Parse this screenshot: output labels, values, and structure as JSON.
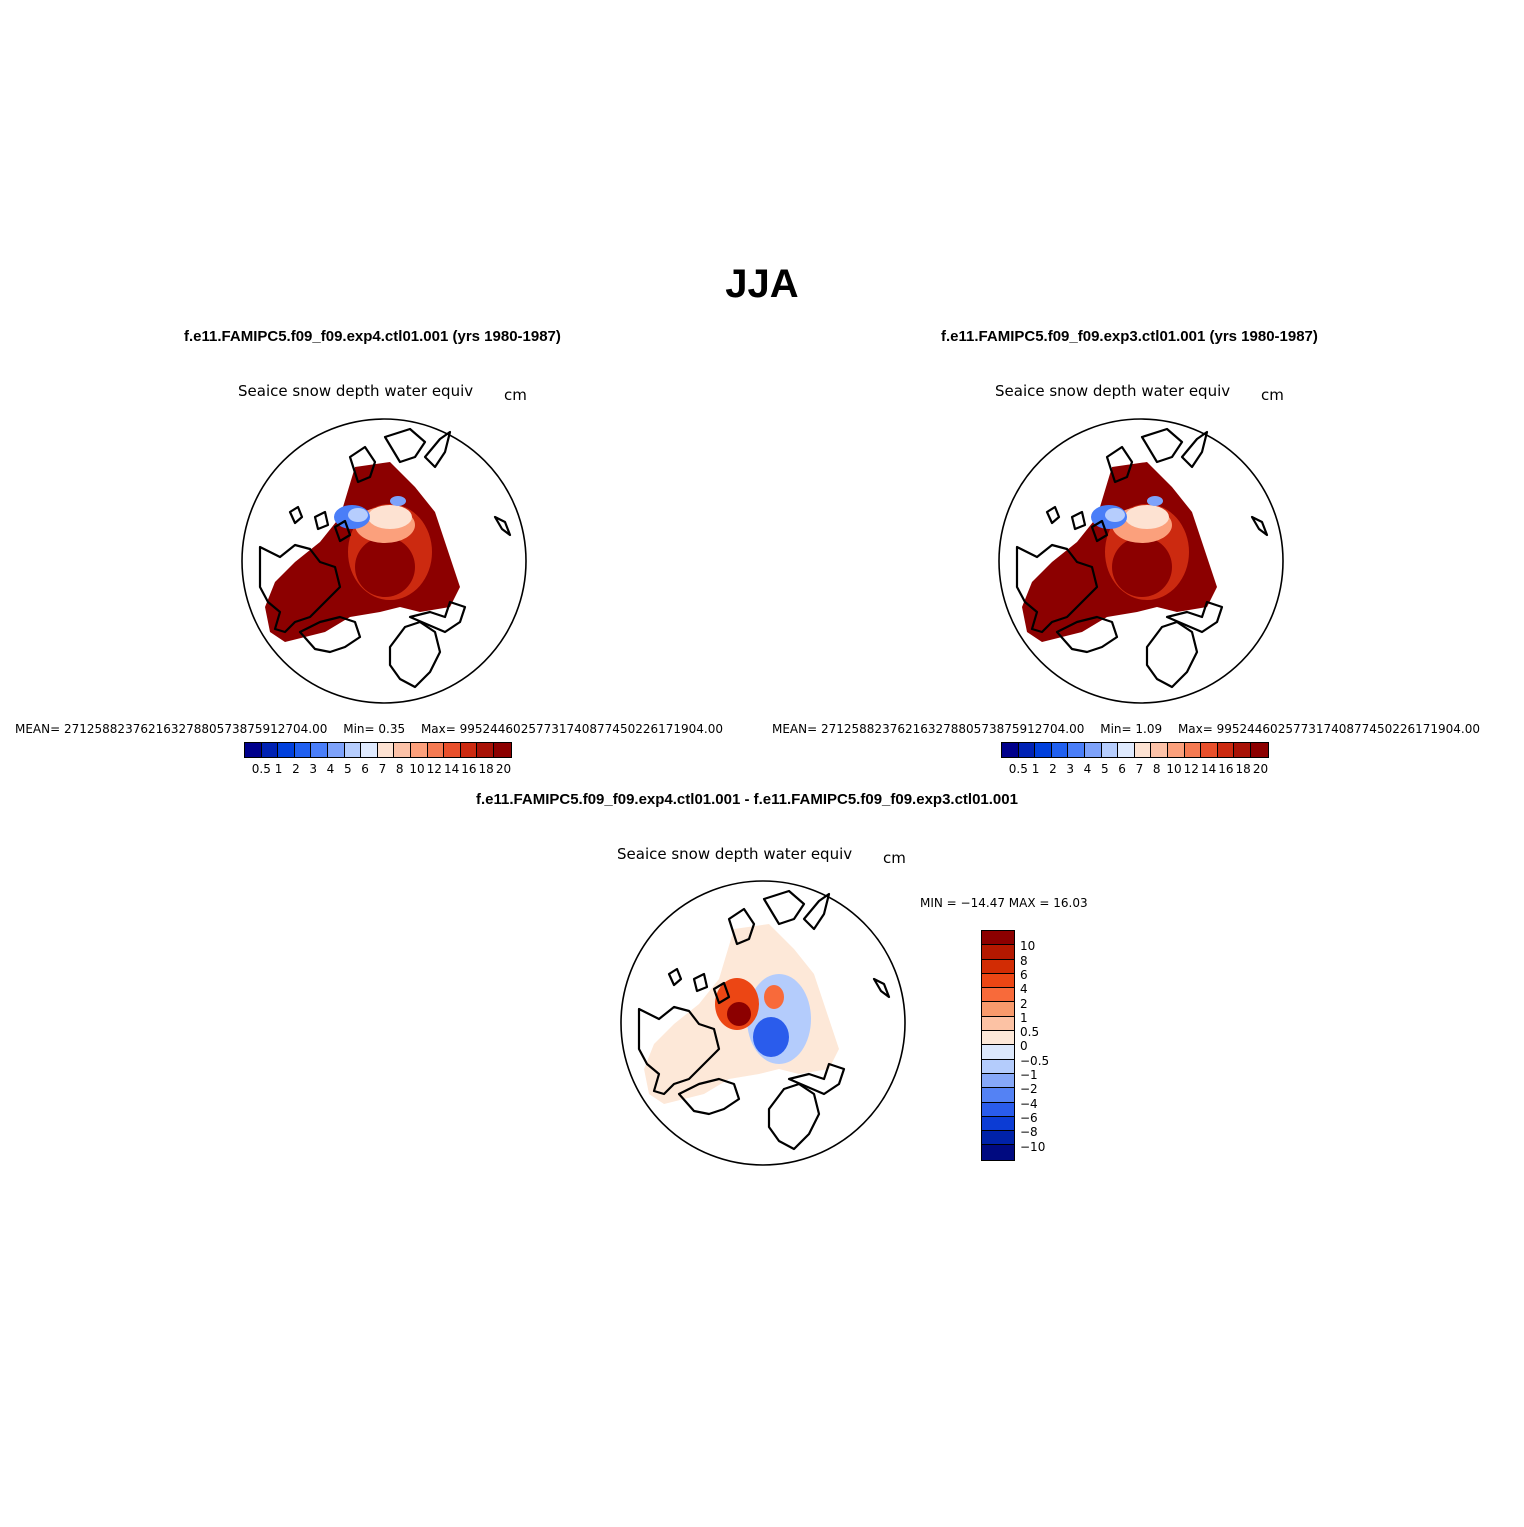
{
  "title": "JJA",
  "panels": [
    {
      "id": "exp4",
      "case_title": "f.e11.FAMIPC5.f09_f09.exp4.ctl01.001 (yrs 1980-1987)",
      "variable": "Seaice snow depth water equiv",
      "units": "cm",
      "mean_label": "MEAN= 27125882376216327880573875912704.00",
      "min_label": "Min=    0.35",
      "max_label": "Max= 99524460257731740877450226171904.00"
    },
    {
      "id": "exp3",
      "case_title": "f.e11.FAMIPC5.f09_f09.exp3.ctl01.001 (yrs 1980-1987)",
      "variable": "Seaice snow depth water equiv",
      "units": "cm",
      "mean_label": "MEAN= 27125882376216327880573875912704.00",
      "min_label": "Min=    1.09",
      "max_label": "Max= 99524460257731740877450226171904.00"
    }
  ],
  "diff": {
    "case_title": "f.e11.FAMIPC5.f09_f09.exp4.ctl01.001 - f.e11.FAMIPC5.f09_f09.exp3.ctl01.001",
    "variable": "Seaice snow depth water equiv",
    "units": "cm",
    "minmax_label": "MIN = −14.47  MAX =   16.03"
  },
  "colorbars": {
    "abs": {
      "levels": [
        "0.5",
        "1",
        "2",
        "3",
        "4",
        "5",
        "6",
        "7",
        "8",
        "10",
        "12",
        "14",
        "16",
        "18",
        "20"
      ],
      "colors": [
        "#00008c",
        "#0022b4",
        "#0040dc",
        "#2060f0",
        "#4a7ef8",
        "#7ea2fa",
        "#b6cdfd",
        "#dfeafe",
        "#fde2d2",
        "#fcc2a8",
        "#fba07c",
        "#f57a52",
        "#e8502c",
        "#cc2a10",
        "#a81206",
        "#8c0000"
      ]
    },
    "diff": {
      "levels": [
        "10",
        "8",
        "6",
        "4",
        "2",
        "1",
        "0.5",
        "0",
        "−0.5",
        "−1",
        "−2",
        "−4",
        "−6",
        "−8",
        "−10"
      ],
      "colors": [
        "#8c0000",
        "#b41800",
        "#d22c04",
        "#ec4614",
        "#f86a3a",
        "#f89a6c",
        "#fcc2a4",
        "#fde8d8",
        "#dce8fc",
        "#b4ccfc",
        "#86a8f8",
        "#5482f4",
        "#2a5cec",
        "#0c3cd4",
        "#0022a8",
        "#000a80"
      ]
    }
  },
  "colors": {
    "land_outline": "#000000",
    "ice_edge_abs": "#8c0000",
    "ice_edge_diff": "#fde8d8"
  }
}
